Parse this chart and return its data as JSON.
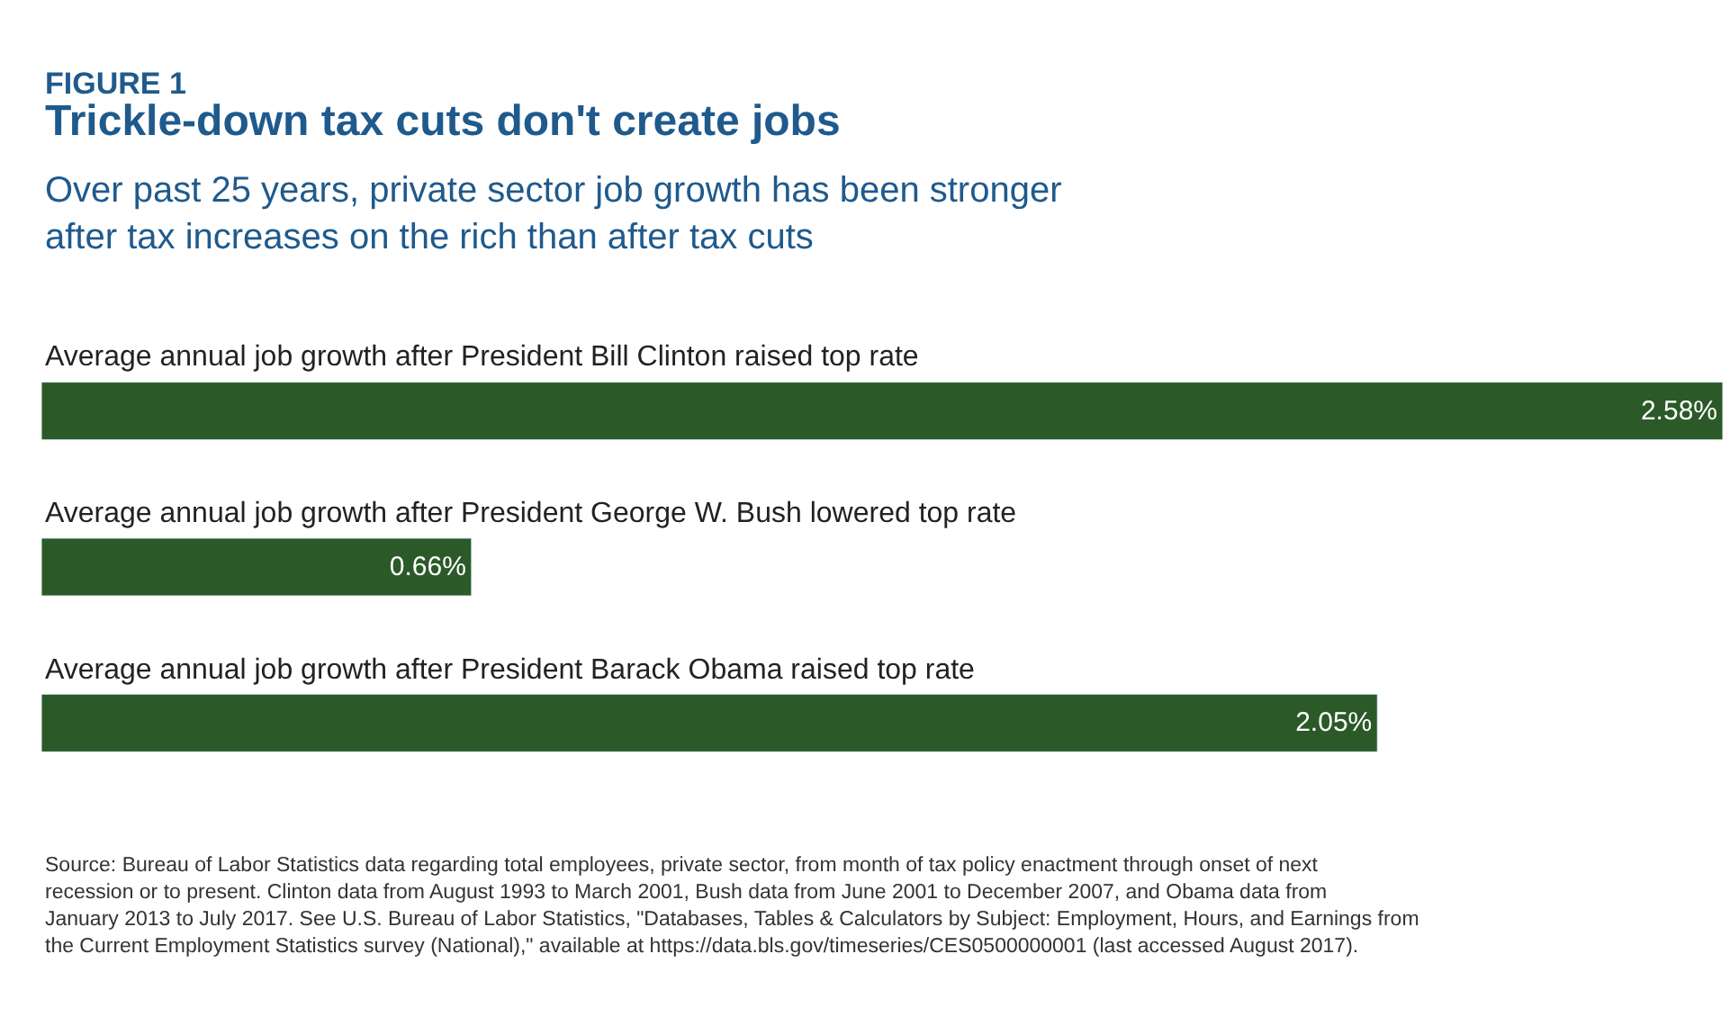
{
  "chart_data": {
    "type": "bar",
    "orientation": "horizontal",
    "title": "Trickle-down tax cuts don't create jobs",
    "subtitle": "Over past 25 years, private sector job growth has been stronger\nafter tax increases on the rich than after tax cuts",
    "categories": [
      "Average annual job growth after President Bill Clinton raised top rate",
      "Average annual job growth after President George W. Bush lowered top rate",
      "Average annual job growth after President Barack Obama raised top rate"
    ],
    "values": [
      2.58,
      0.66,
      2.05
    ],
    "value_labels": [
      "2.58%",
      "0.66%",
      "2.05%"
    ],
    "color": "#2b5a28",
    "annotations": [
      "FIGURE 1",
      "Source: Bureau of Labor Statistics data regarding total employees, private sector, from month of tax policy enactment through onset of next\nrecession or to present. Clinton data from August 1993 to March 2001, Bush data from June 2001 to December 2007, and Obama data from\nJanuary 2013 to July 2017. See U.S. Bureau of Labor Statistics, \"Databases, Tables & Calculators by Subject: Employment, Hours, and Earnings from\nthe Current Employment Statistics survey (National),\" available at https://data.bls.gov/timeseries/CES0500000001 (last accessed August 2017)."
    ],
    "tick_labels": false
  }
}
